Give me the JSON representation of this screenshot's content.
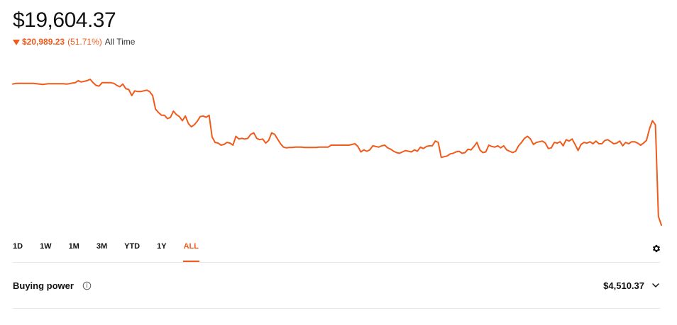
{
  "portfolio": {
    "value": "$19,604.37",
    "change_amount": "$20,989.23",
    "change_percent": "(51.71%)",
    "change_period": "All Time",
    "change_direction": "down"
  },
  "colors": {
    "accent": "#f05a1a",
    "text": "#111111",
    "divider": "#e6e6e6"
  },
  "range_tabs": [
    {
      "label": "1D",
      "active": false
    },
    {
      "label": "1W",
      "active": false
    },
    {
      "label": "1M",
      "active": false
    },
    {
      "label": "3M",
      "active": false
    },
    {
      "label": "YTD",
      "active": false
    },
    {
      "label": "1Y",
      "active": false
    },
    {
      "label": "ALL",
      "active": true
    }
  ],
  "settings": {
    "icon": "gear-icon"
  },
  "buying_power": {
    "label": "Buying power",
    "info_icon": "info-icon",
    "value": "$4,510.37",
    "expand_icon": "chevron-down-icon"
  },
  "chart_data": {
    "type": "line",
    "title": "",
    "xlabel": "",
    "ylabel": "",
    "grid": false,
    "legend": false,
    "series": [
      {
        "values": [
          40400,
          40500,
          40500,
          40500,
          40500,
          40500,
          40500,
          40500,
          40450,
          40400,
          40350,
          40400,
          40450,
          40450,
          40450,
          40450,
          40450,
          40450,
          40400,
          40450,
          40550,
          40600,
          40900,
          40700,
          40800,
          40900,
          41100,
          40600,
          40200,
          40100,
          40600,
          40600,
          40600,
          40600,
          40500,
          40200,
          40000,
          40400,
          39700,
          39600,
          38700,
          39400,
          39300,
          39300,
          39400,
          39500,
          39300,
          38700,
          36700,
          36200,
          35800,
          35800,
          35300,
          35500,
          36400,
          35900,
          35600,
          35000,
          35700,
          34600,
          34100,
          34400,
          34900,
          35600,
          35700,
          35500,
          35800,
          32600,
          31800,
          31700,
          31400,
          31500,
          31800,
          31700,
          31400,
          32700,
          32300,
          32400,
          32300,
          32400,
          33000,
          33200,
          32400,
          32200,
          32300,
          31700,
          32100,
          33200,
          33000,
          32300,
          31600,
          31100,
          31000,
          31050,
          31050,
          31100,
          31100,
          31100,
          31050,
          31050,
          31050,
          31050,
          31050,
          31100,
          31100,
          31100,
          31100,
          31400,
          31400,
          31400,
          31400,
          31400,
          31400,
          31400,
          31500,
          31600,
          31200,
          30400,
          30700,
          30500,
          30700,
          31300,
          31200,
          31100,
          31300,
          31400,
          31000,
          30800,
          30500,
          30300,
          30200,
          30400,
          30600,
          30500,
          30400,
          30700,
          30500,
          31100,
          30900,
          31200,
          31300,
          31300,
          32000,
          31800,
          29600,
          29700,
          29800,
          30100,
          30200,
          30400,
          30500,
          30200,
          30300,
          30800,
          30700,
          31200,
          31800,
          30700,
          30300,
          30400,
          31400,
          31200,
          31100,
          31300,
          31000,
          31300,
          30700,
          30500,
          30300,
          30500,
          31300,
          31800,
          32400,
          32700,
          32300,
          31500,
          31800,
          31900,
          32000,
          31700,
          30900,
          31000,
          31800,
          31700,
          31900,
          31300,
          32200,
          32000,
          32300,
          31500,
          30600,
          31500,
          31800,
          31700,
          31900,
          31600,
          32000,
          31600,
          31600,
          32100,
          32200,
          31900,
          31600,
          31700,
          32000,
          31300,
          31800,
          31600,
          31900,
          31900,
          31700,
          31400,
          31700,
          32100,
          33800,
          35000,
          34400,
          20900,
          19604.37
        ]
      }
    ]
  }
}
